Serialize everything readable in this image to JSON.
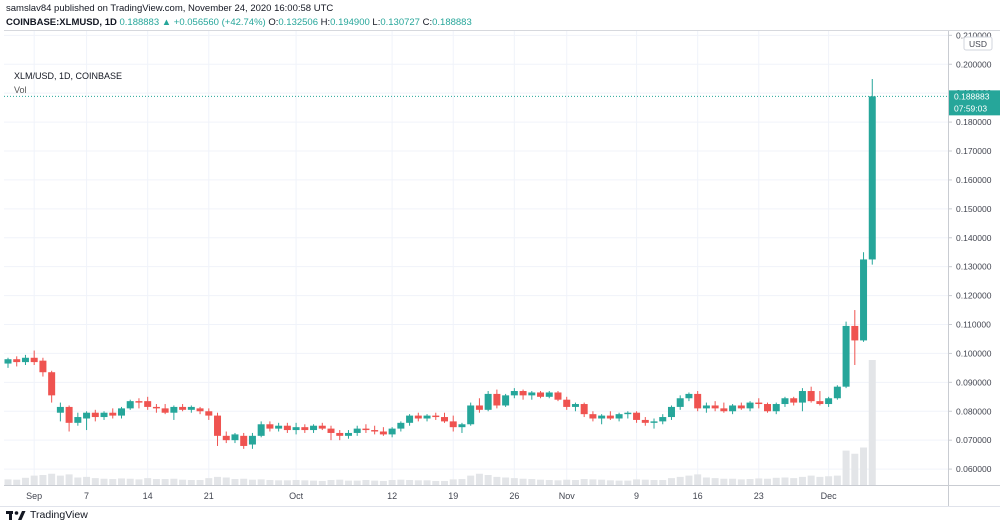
{
  "header": {
    "publish_line": "samslav84 published on TradingView.com, November 24, 2020 16:00:58 UTC",
    "symbol": "COINBASE:XLMUSD, 1D",
    "last": "0.188883",
    "change": "+0.056560 (+42.74%)",
    "o_label": "O:",
    "o_value": "0.132506",
    "h_label": "H:",
    "h_value": "0.194900",
    "l_label": "L:",
    "l_value": "0.130727",
    "c_label": "C:",
    "c_value": "0.188883"
  },
  "legend": {
    "title": "XLM/USD, 1D, COINBASE",
    "volume_label": "Vol"
  },
  "price_axis": {
    "currency": "USD",
    "last_price_label": "0.188883",
    "countdown_label": "07:59:03"
  },
  "footer": {
    "brand": "TradingView"
  },
  "colors": {
    "up": "#26a69a",
    "down": "#ef5350",
    "volume": "#e3e5e8",
    "grid": "#f0f3fa",
    "last_line": "#26a69a"
  },
  "chart_data": {
    "type": "candlestick",
    "ylim": [
      0.0545,
      0.2115
    ],
    "y_ticks": [
      0.06,
      0.07,
      0.08,
      0.09,
      0.1,
      0.11,
      0.12,
      0.13,
      0.14,
      0.15,
      0.16,
      0.17,
      0.18,
      0.19,
      0.2,
      0.21
    ],
    "y_tick_labels": [
      "0.060000",
      "0.070000",
      "0.080000",
      "0.090000",
      "0.100000",
      "0.110000",
      "0.120000",
      "0.130000",
      "0.140000",
      "0.150000",
      "0.160000",
      "0.170000",
      "0.180000",
      "0.190000",
      "0.200000",
      "0.210000"
    ],
    "x_labels": [
      {
        "date": "2020-09-01",
        "label": "Sep"
      },
      {
        "date": "2020-09-07",
        "label": "7"
      },
      {
        "date": "2020-09-14",
        "label": "14"
      },
      {
        "date": "2020-09-21",
        "label": "21"
      },
      {
        "date": "2020-10-01",
        "label": "Oct"
      },
      {
        "date": "2020-10-12",
        "label": "12"
      },
      {
        "date": "2020-10-19",
        "label": "19"
      },
      {
        "date": "2020-10-26",
        "label": "26"
      },
      {
        "date": "2020-11-01",
        "label": "Nov"
      },
      {
        "date": "2020-11-09",
        "label": "9"
      },
      {
        "date": "2020-11-16",
        "label": "16"
      },
      {
        "date": "2020-11-23",
        "label": "23"
      },
      {
        "date": "2020-12-01",
        "label": "Dec"
      }
    ],
    "candles": [
      {
        "date": "2020-08-29",
        "o": 0.0965,
        "h": 0.0985,
        "l": 0.095,
        "c": 0.098,
        "v": 1.8
      },
      {
        "date": "2020-08-30",
        "o": 0.098,
        "h": 0.099,
        "l": 0.0955,
        "c": 0.097,
        "v": 1.7
      },
      {
        "date": "2020-08-31",
        "o": 0.097,
        "h": 0.0995,
        "l": 0.096,
        "c": 0.0985,
        "v": 2.3
      },
      {
        "date": "2020-09-01",
        "o": 0.0985,
        "h": 0.101,
        "l": 0.096,
        "c": 0.097,
        "v": 3.0
      },
      {
        "date": "2020-09-02",
        "o": 0.0975,
        "h": 0.0985,
        "l": 0.092,
        "c": 0.0935,
        "v": 3.2
      },
      {
        "date": "2020-09-03",
        "o": 0.0935,
        "h": 0.094,
        "l": 0.083,
        "c": 0.0855,
        "v": 3.6
      },
      {
        "date": "2020-09-04",
        "o": 0.0795,
        "h": 0.083,
        "l": 0.0765,
        "c": 0.0815,
        "v": 3.0
      },
      {
        "date": "2020-09-05",
        "o": 0.0815,
        "h": 0.082,
        "l": 0.073,
        "c": 0.076,
        "v": 3.4
      },
      {
        "date": "2020-09-06",
        "o": 0.076,
        "h": 0.0795,
        "l": 0.075,
        "c": 0.078,
        "v": 2.4
      },
      {
        "date": "2020-09-07",
        "o": 0.0775,
        "h": 0.08,
        "l": 0.0735,
        "c": 0.0795,
        "v": 2.6
      },
      {
        "date": "2020-09-08",
        "o": 0.0795,
        "h": 0.0805,
        "l": 0.0765,
        "c": 0.078,
        "v": 2.2
      },
      {
        "date": "2020-09-09",
        "o": 0.078,
        "h": 0.08,
        "l": 0.077,
        "c": 0.0795,
        "v": 2.0
      },
      {
        "date": "2020-09-10",
        "o": 0.0795,
        "h": 0.081,
        "l": 0.0775,
        "c": 0.0785,
        "v": 1.9
      },
      {
        "date": "2020-09-11",
        "o": 0.0785,
        "h": 0.0815,
        "l": 0.0775,
        "c": 0.081,
        "v": 2.1
      },
      {
        "date": "2020-09-12",
        "o": 0.081,
        "h": 0.084,
        "l": 0.0805,
        "c": 0.0835,
        "v": 2.0
      },
      {
        "date": "2020-09-13",
        "o": 0.0835,
        "h": 0.0845,
        "l": 0.081,
        "c": 0.083,
        "v": 1.8
      },
      {
        "date": "2020-09-14",
        "o": 0.0835,
        "h": 0.085,
        "l": 0.0805,
        "c": 0.0815,
        "v": 2.2
      },
      {
        "date": "2020-09-15",
        "o": 0.0815,
        "h": 0.0825,
        "l": 0.0795,
        "c": 0.081,
        "v": 1.9
      },
      {
        "date": "2020-09-16",
        "o": 0.081,
        "h": 0.0825,
        "l": 0.079,
        "c": 0.0795,
        "v": 1.9
      },
      {
        "date": "2020-09-17",
        "o": 0.0795,
        "h": 0.082,
        "l": 0.077,
        "c": 0.0815,
        "v": 2.0
      },
      {
        "date": "2020-09-18",
        "o": 0.0815,
        "h": 0.0825,
        "l": 0.08,
        "c": 0.0805,
        "v": 1.7
      },
      {
        "date": "2020-09-19",
        "o": 0.0805,
        "h": 0.082,
        "l": 0.0795,
        "c": 0.0815,
        "v": 1.6
      },
      {
        "date": "2020-09-20",
        "o": 0.081,
        "h": 0.0815,
        "l": 0.079,
        "c": 0.08,
        "v": 1.6
      },
      {
        "date": "2020-09-21",
        "o": 0.08,
        "h": 0.081,
        "l": 0.077,
        "c": 0.0785,
        "v": 2.2
      },
      {
        "date": "2020-09-22",
        "o": 0.0785,
        "h": 0.0795,
        "l": 0.068,
        "c": 0.0715,
        "v": 2.6
      },
      {
        "date": "2020-09-23",
        "o": 0.0715,
        "h": 0.073,
        "l": 0.069,
        "c": 0.07,
        "v": 2.4
      },
      {
        "date": "2020-09-24",
        "o": 0.07,
        "h": 0.0725,
        "l": 0.069,
        "c": 0.072,
        "v": 1.9
      },
      {
        "date": "2020-09-25",
        "o": 0.0715,
        "h": 0.0725,
        "l": 0.067,
        "c": 0.068,
        "v": 2.0
      },
      {
        "date": "2020-09-26",
        "o": 0.0685,
        "h": 0.0725,
        "l": 0.067,
        "c": 0.0715,
        "v": 1.7
      },
      {
        "date": "2020-09-27",
        "o": 0.0715,
        "h": 0.0765,
        "l": 0.071,
        "c": 0.0755,
        "v": 1.8
      },
      {
        "date": "2020-09-28",
        "o": 0.0755,
        "h": 0.0765,
        "l": 0.073,
        "c": 0.074,
        "v": 1.6
      },
      {
        "date": "2020-09-29",
        "o": 0.074,
        "h": 0.076,
        "l": 0.073,
        "c": 0.075,
        "v": 1.5
      },
      {
        "date": "2020-09-30",
        "o": 0.075,
        "h": 0.076,
        "l": 0.0725,
        "c": 0.0735,
        "v": 1.5
      },
      {
        "date": "2020-10-01",
        "o": 0.0735,
        "h": 0.076,
        "l": 0.072,
        "c": 0.0745,
        "v": 1.6
      },
      {
        "date": "2020-10-02",
        "o": 0.0745,
        "h": 0.0755,
        "l": 0.0725,
        "c": 0.0735,
        "v": 1.5
      },
      {
        "date": "2020-10-03",
        "o": 0.0735,
        "h": 0.0755,
        "l": 0.0725,
        "c": 0.075,
        "v": 1.4
      },
      {
        "date": "2020-10-04",
        "o": 0.075,
        "h": 0.076,
        "l": 0.0735,
        "c": 0.074,
        "v": 1.3
      },
      {
        "date": "2020-10-05",
        "o": 0.074,
        "h": 0.075,
        "l": 0.07,
        "c": 0.0725,
        "v": 1.6
      },
      {
        "date": "2020-10-06",
        "o": 0.0725,
        "h": 0.0735,
        "l": 0.07,
        "c": 0.0715,
        "v": 1.7
      },
      {
        "date": "2020-10-07",
        "o": 0.0715,
        "h": 0.0735,
        "l": 0.0705,
        "c": 0.0725,
        "v": 1.4
      },
      {
        "date": "2020-10-08",
        "o": 0.0725,
        "h": 0.075,
        "l": 0.0715,
        "c": 0.074,
        "v": 1.4
      },
      {
        "date": "2020-10-09",
        "o": 0.074,
        "h": 0.0755,
        "l": 0.0725,
        "c": 0.0735,
        "v": 1.6
      },
      {
        "date": "2020-10-10",
        "o": 0.0735,
        "h": 0.075,
        "l": 0.072,
        "c": 0.073,
        "v": 1.4
      },
      {
        "date": "2020-10-11",
        "o": 0.073,
        "h": 0.0745,
        "l": 0.0715,
        "c": 0.072,
        "v": 1.3
      },
      {
        "date": "2020-10-12",
        "o": 0.072,
        "h": 0.0745,
        "l": 0.071,
        "c": 0.074,
        "v": 1.6
      },
      {
        "date": "2020-10-13",
        "o": 0.074,
        "h": 0.0765,
        "l": 0.073,
        "c": 0.076,
        "v": 1.7
      },
      {
        "date": "2020-10-14",
        "o": 0.076,
        "h": 0.079,
        "l": 0.075,
        "c": 0.0785,
        "v": 1.6
      },
      {
        "date": "2020-10-15",
        "o": 0.0785,
        "h": 0.0795,
        "l": 0.0765,
        "c": 0.0775,
        "v": 1.5
      },
      {
        "date": "2020-10-16",
        "o": 0.0775,
        "h": 0.079,
        "l": 0.0765,
        "c": 0.0785,
        "v": 1.5
      },
      {
        "date": "2020-10-17",
        "o": 0.0785,
        "h": 0.0795,
        "l": 0.077,
        "c": 0.078,
        "v": 1.3
      },
      {
        "date": "2020-10-18",
        "o": 0.078,
        "h": 0.0795,
        "l": 0.076,
        "c": 0.0765,
        "v": 1.3
      },
      {
        "date": "2020-10-19",
        "o": 0.0765,
        "h": 0.0785,
        "l": 0.073,
        "c": 0.0745,
        "v": 1.8
      },
      {
        "date": "2020-10-20",
        "o": 0.0745,
        "h": 0.076,
        "l": 0.0725,
        "c": 0.0755,
        "v": 1.9
      },
      {
        "date": "2020-10-21",
        "o": 0.0755,
        "h": 0.083,
        "l": 0.075,
        "c": 0.082,
        "v": 3.0
      },
      {
        "date": "2020-10-22",
        "o": 0.082,
        "h": 0.0845,
        "l": 0.0795,
        "c": 0.0805,
        "v": 3.6
      },
      {
        "date": "2020-10-23",
        "o": 0.0805,
        "h": 0.087,
        "l": 0.08,
        "c": 0.086,
        "v": 3.2
      },
      {
        "date": "2020-10-24",
        "o": 0.086,
        "h": 0.0875,
        "l": 0.081,
        "c": 0.082,
        "v": 2.6
      },
      {
        "date": "2020-10-25",
        "o": 0.082,
        "h": 0.086,
        "l": 0.0815,
        "c": 0.0855,
        "v": 2.4
      },
      {
        "date": "2020-10-26",
        "o": 0.0855,
        "h": 0.088,
        "l": 0.0845,
        "c": 0.087,
        "v": 2.2
      },
      {
        "date": "2020-10-27",
        "o": 0.087,
        "h": 0.0875,
        "l": 0.084,
        "c": 0.0855,
        "v": 2.0
      },
      {
        "date": "2020-10-28",
        "o": 0.0855,
        "h": 0.087,
        "l": 0.084,
        "c": 0.0865,
        "v": 1.9
      },
      {
        "date": "2020-10-29",
        "o": 0.0865,
        "h": 0.087,
        "l": 0.0845,
        "c": 0.085,
        "v": 1.7
      },
      {
        "date": "2020-10-30",
        "o": 0.085,
        "h": 0.087,
        "l": 0.0845,
        "c": 0.0865,
        "v": 1.6
      },
      {
        "date": "2020-10-31",
        "o": 0.0865,
        "h": 0.087,
        "l": 0.0835,
        "c": 0.084,
        "v": 1.5
      },
      {
        "date": "2020-11-01",
        "o": 0.084,
        "h": 0.085,
        "l": 0.0805,
        "c": 0.0815,
        "v": 1.7
      },
      {
        "date": "2020-11-02",
        "o": 0.0815,
        "h": 0.083,
        "l": 0.08,
        "c": 0.0825,
        "v": 1.6
      },
      {
        "date": "2020-11-03",
        "o": 0.0825,
        "h": 0.083,
        "l": 0.078,
        "c": 0.079,
        "v": 1.9
      },
      {
        "date": "2020-11-04",
        "o": 0.079,
        "h": 0.08,
        "l": 0.0765,
        "c": 0.0775,
        "v": 1.8
      },
      {
        "date": "2020-11-05",
        "o": 0.0775,
        "h": 0.079,
        "l": 0.0755,
        "c": 0.0785,
        "v": 1.7
      },
      {
        "date": "2020-11-06",
        "o": 0.0785,
        "h": 0.08,
        "l": 0.077,
        "c": 0.0775,
        "v": 1.5
      },
      {
        "date": "2020-11-07",
        "o": 0.0775,
        "h": 0.0795,
        "l": 0.0765,
        "c": 0.079,
        "v": 1.4
      },
      {
        "date": "2020-11-08",
        "o": 0.079,
        "h": 0.08,
        "l": 0.0775,
        "c": 0.0795,
        "v": 1.4
      },
      {
        "date": "2020-11-09",
        "o": 0.0795,
        "h": 0.08,
        "l": 0.076,
        "c": 0.077,
        "v": 1.8
      },
      {
        "date": "2020-11-10",
        "o": 0.077,
        "h": 0.078,
        "l": 0.075,
        "c": 0.076,
        "v": 1.7
      },
      {
        "date": "2020-11-11",
        "o": 0.076,
        "h": 0.0775,
        "l": 0.074,
        "c": 0.0765,
        "v": 1.6
      },
      {
        "date": "2020-11-12",
        "o": 0.0765,
        "h": 0.079,
        "l": 0.0755,
        "c": 0.078,
        "v": 1.6
      },
      {
        "date": "2020-11-13",
        "o": 0.078,
        "h": 0.082,
        "l": 0.077,
        "c": 0.0815,
        "v": 2.2
      },
      {
        "date": "2020-11-14",
        "o": 0.0815,
        "h": 0.0855,
        "l": 0.0805,
        "c": 0.0845,
        "v": 2.6
      },
      {
        "date": "2020-11-15",
        "o": 0.0845,
        "h": 0.0865,
        "l": 0.0835,
        "c": 0.086,
        "v": 3.0
      },
      {
        "date": "2020-11-16",
        "o": 0.086,
        "h": 0.087,
        "l": 0.08,
        "c": 0.081,
        "v": 3.4
      },
      {
        "date": "2020-11-17",
        "o": 0.081,
        "h": 0.083,
        "l": 0.0795,
        "c": 0.082,
        "v": 2.4
      },
      {
        "date": "2020-11-18",
        "o": 0.082,
        "h": 0.0835,
        "l": 0.08,
        "c": 0.081,
        "v": 2.2
      },
      {
        "date": "2020-11-19",
        "o": 0.081,
        "h": 0.083,
        "l": 0.0795,
        "c": 0.08,
        "v": 2.0
      },
      {
        "date": "2020-11-20",
        "o": 0.08,
        "h": 0.0825,
        "l": 0.079,
        "c": 0.082,
        "v": 2.0
      },
      {
        "date": "2020-11-21",
        "o": 0.082,
        "h": 0.083,
        "l": 0.0805,
        "c": 0.081,
        "v": 1.8
      },
      {
        "date": "2020-11-22",
        "o": 0.081,
        "h": 0.0835,
        "l": 0.08,
        "c": 0.083,
        "v": 1.9
      },
      {
        "date": "2020-11-23",
        "o": 0.083,
        "h": 0.0845,
        "l": 0.081,
        "c": 0.0825,
        "v": 2.1
      },
      {
        "date": "2020-11-24",
        "o": 0.0825,
        "h": 0.083,
        "l": 0.0795,
        "c": 0.08,
        "v": 2.0
      },
      {
        "date": "2020-11-25",
        "o": 0.08,
        "h": 0.083,
        "l": 0.079,
        "c": 0.0825,
        "v": 2.3
      },
      {
        "date": "2020-11-26",
        "o": 0.0825,
        "h": 0.085,
        "l": 0.0815,
        "c": 0.0845,
        "v": 2.4
      },
      {
        "date": "2020-11-27",
        "o": 0.0845,
        "h": 0.085,
        "l": 0.082,
        "c": 0.083,
        "v": 2.2
      },
      {
        "date": "2020-11-28",
        "o": 0.083,
        "h": 0.088,
        "l": 0.08,
        "c": 0.087,
        "v": 2.6
      },
      {
        "date": "2020-11-29",
        "o": 0.087,
        "h": 0.0885,
        "l": 0.083,
        "c": 0.0835,
        "v": 3.0
      },
      {
        "date": "2020-11-30",
        "o": 0.0835,
        "h": 0.087,
        "l": 0.082,
        "c": 0.0825,
        "v": 2.6
      },
      {
        "date": "2020-12-01",
        "o": 0.0825,
        "h": 0.085,
        "l": 0.0815,
        "c": 0.0845,
        "v": 2.8
      },
      {
        "date": "2020-12-02",
        "o": 0.0845,
        "h": 0.089,
        "l": 0.084,
        "c": 0.0885,
        "v": 3.0
      },
      {
        "date": "2020-12-03",
        "o": 0.0885,
        "h": 0.111,
        "l": 0.088,
        "c": 0.1095,
        "v": 11.0
      },
      {
        "date": "2020-12-04",
        "o": 0.1095,
        "h": 0.115,
        "l": 0.096,
        "c": 0.1045,
        "v": 10.0
      },
      {
        "date": "2020-12-05",
        "o": 0.1045,
        "h": 0.135,
        "l": 0.104,
        "c": 0.1325,
        "v": 12.0
      },
      {
        "date": "2020-12-06",
        "o": 0.1325,
        "h": 0.1949,
        "l": 0.1307,
        "c": 0.1889,
        "v": 40.0
      }
    ]
  }
}
